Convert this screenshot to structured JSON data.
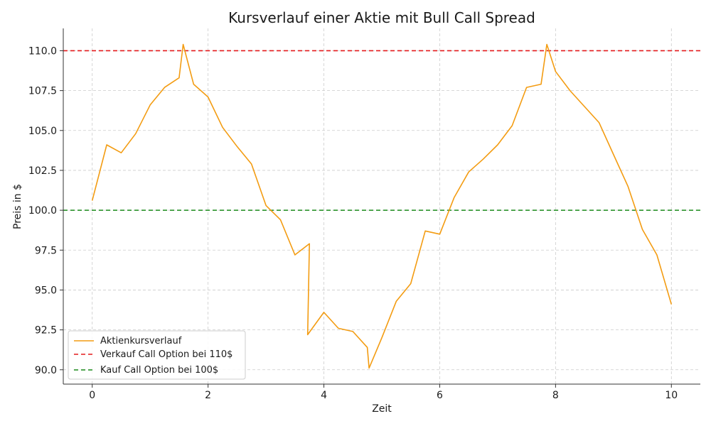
{
  "chart_data": {
    "type": "line",
    "title": "Kursverlauf einer Aktie mit Bull Call Spread",
    "xlabel": "Zeit",
    "ylabel": "Preis in $",
    "xlim": [
      -0.5,
      10.5
    ],
    "ylim": [
      89.1,
      111.4
    ],
    "xticks": [
      0,
      2,
      4,
      6,
      8,
      10
    ],
    "xtick_labels": [
      "0",
      "2",
      "4",
      "6",
      "8",
      "10"
    ],
    "yticks": [
      90.0,
      92.5,
      95.0,
      97.5,
      100.0,
      102.5,
      105.0,
      107.5,
      110.0
    ],
    "ytick_labels": [
      "90.0",
      "92.5",
      "95.0",
      "97.5",
      "100.0",
      "102.5",
      "105.0",
      "107.5",
      "110.0"
    ],
    "grid": true,
    "legend_position": "bottom-left",
    "series": [
      {
        "name": "Aktienkursverlauf",
        "color": "#f39c12",
        "x": [
          0,
          0.25,
          0.5,
          0.75,
          1.0,
          1.25,
          1.5,
          1.57,
          1.75,
          2.0,
          2.25,
          2.5,
          2.75,
          3.0,
          3.25,
          3.5,
          3.75,
          3.72,
          4.0,
          4.25,
          4.5,
          4.75,
          4.78,
          5.0,
          5.25,
          5.5,
          5.75,
          6.0,
          6.25,
          6.5,
          6.75,
          7.0,
          7.25,
          7.5,
          7.75,
          7.85,
          8.0,
          8.25,
          8.5,
          8.75,
          9.0,
          9.25,
          9.5,
          9.75,
          10.0
        ],
        "y": [
          100.6,
          104.1,
          103.6,
          104.8,
          106.6,
          107.7,
          108.3,
          110.4,
          107.9,
          107.1,
          105.2,
          104.0,
          102.9,
          100.3,
          99.4,
          97.2,
          97.9,
          92.2,
          93.6,
          92.6,
          92.4,
          91.4,
          90.1,
          92.0,
          94.3,
          95.4,
          98.7,
          98.5,
          100.8,
          102.4,
          103.2,
          104.1,
          105.3,
          107.7,
          107.9,
          110.4,
          108.7,
          107.5,
          106.5,
          105.5,
          103.5,
          101.5,
          98.8,
          97.2,
          94.1
        ]
      }
    ],
    "reference_lines": [
      {
        "name": "Verkauf Call Option bei 110$",
        "y": 110.0,
        "color": "#e41a1c",
        "style": "dashed"
      },
      {
        "name": "Kauf Call Option bei 100$",
        "y": 100.0,
        "color": "#1a8a1a",
        "style": "dashed"
      }
    ]
  }
}
